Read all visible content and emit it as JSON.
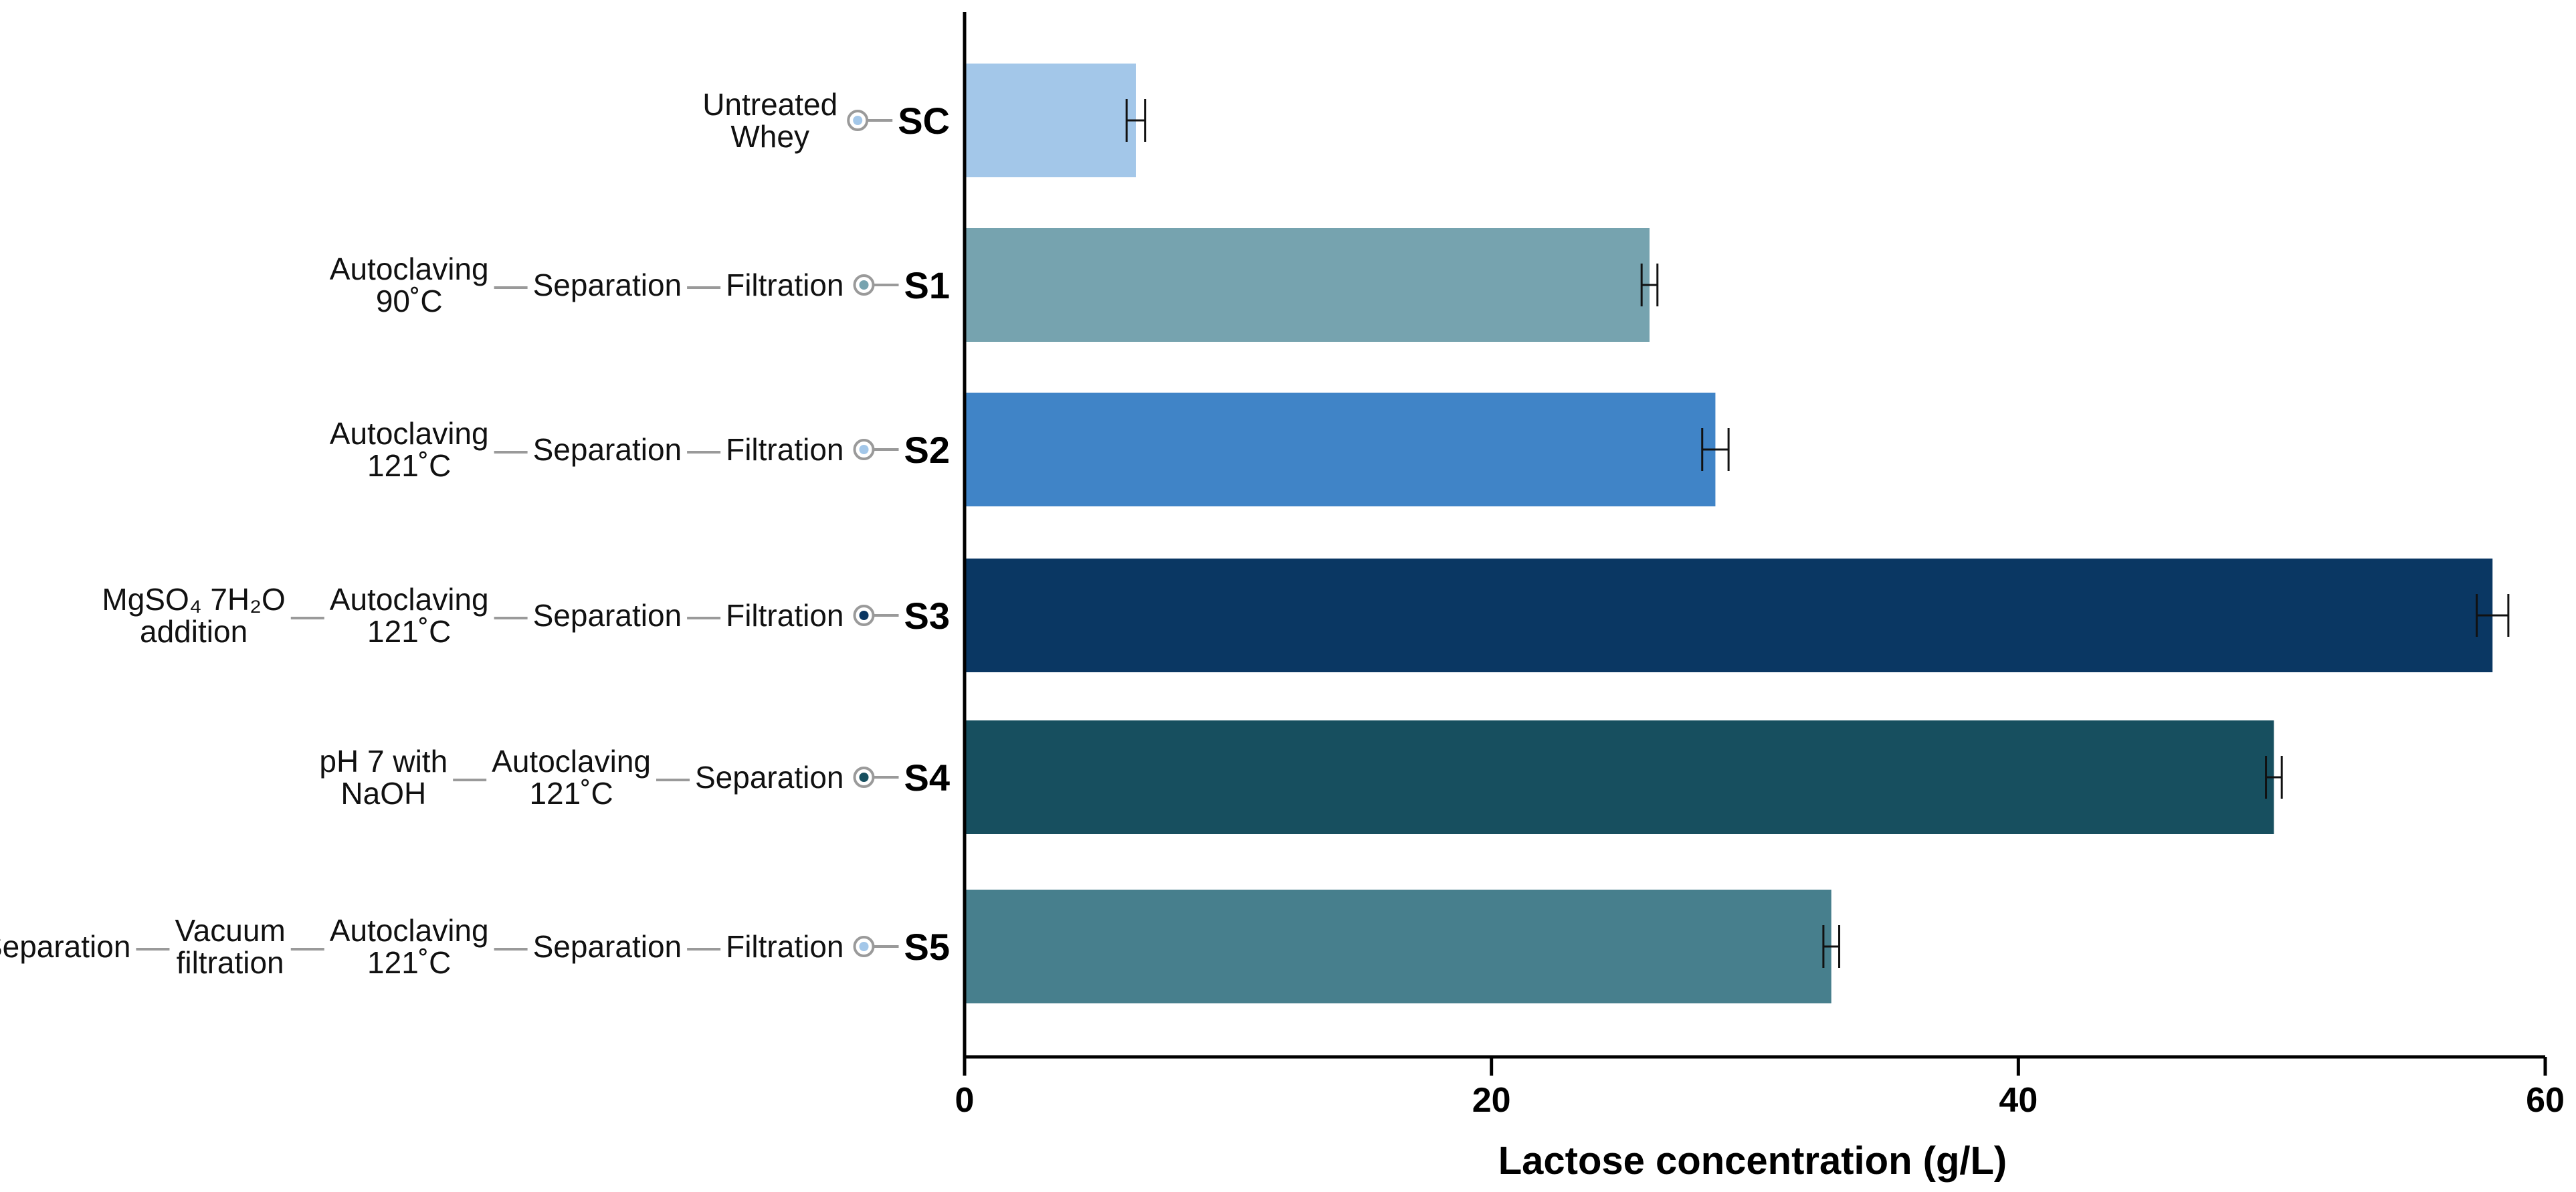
{
  "chart_data": {
    "type": "bar",
    "orientation": "horizontal",
    "categories": [
      "SC",
      "S1",
      "S2",
      "S3",
      "S4",
      "S5"
    ],
    "values": [
      6.5,
      26,
      28.5,
      58,
      49.7,
      32.9
    ],
    "errors": [
      0.35,
      0.3,
      0.5,
      0.6,
      0.3,
      0.3
    ],
    "colors": [
      "#a3c7e9",
      "#76a3af",
      "#4084c7",
      "#0a3763",
      "#174f5f",
      "#477f8d"
    ],
    "xlabel": "Lactose concentration (g/L)",
    "xlim": [
      0,
      60
    ],
    "xticks": [
      0,
      20,
      40,
      60
    ],
    "grid": false,
    "processes": [
      {
        "label": "SC",
        "marker": "light",
        "steps": [
          {
            "lines": [
              "Untreated",
              "Whey"
            ]
          }
        ]
      },
      {
        "label": "S1",
        "marker": "teal",
        "steps": [
          {
            "lines": [
              "Autoclaving",
              "90˚C"
            ]
          },
          {
            "lines": [
              "Separation"
            ]
          },
          {
            "lines": [
              "Filtration"
            ]
          }
        ]
      },
      {
        "label": "S2",
        "marker": "light",
        "steps": [
          {
            "lines": [
              "Autoclaving",
              "121˚C"
            ]
          },
          {
            "lines": [
              "Separation"
            ]
          },
          {
            "lines": [
              "Filtration"
            ]
          }
        ]
      },
      {
        "label": "S3",
        "marker": "navy",
        "steps": [
          {
            "lines": [
              "MgSO₄ 7H₂O",
              "addition"
            ]
          },
          {
            "lines": [
              "Autoclaving",
              "121˚C"
            ]
          },
          {
            "lines": [
              "Separation"
            ]
          },
          {
            "lines": [
              "Filtration"
            ]
          }
        ]
      },
      {
        "label": "S4",
        "marker": "darkteal",
        "steps": [
          {
            "lines": [
              "pH 7 with",
              "NaOH"
            ]
          },
          {
            "lines": [
              "Autoclaving",
              "121˚C"
            ]
          },
          {
            "lines": [
              "Separation"
            ]
          }
        ]
      },
      {
        "label": "S5",
        "marker": "light",
        "steps": [
          {
            "lines": [
              "Separation"
            ]
          },
          {
            "lines": [
              "Vacuum",
              "filtration"
            ]
          },
          {
            "lines": [
              "Autoclaving",
              "121˚C"
            ]
          },
          {
            "lines": [
              "Separation"
            ]
          },
          {
            "lines": [
              "Filtration"
            ]
          }
        ]
      }
    ],
    "marker_colors": {
      "light": "#a3c7e9",
      "teal": "#76a3af",
      "navy": "#0a3763",
      "darkteal": "#174f5f"
    }
  }
}
